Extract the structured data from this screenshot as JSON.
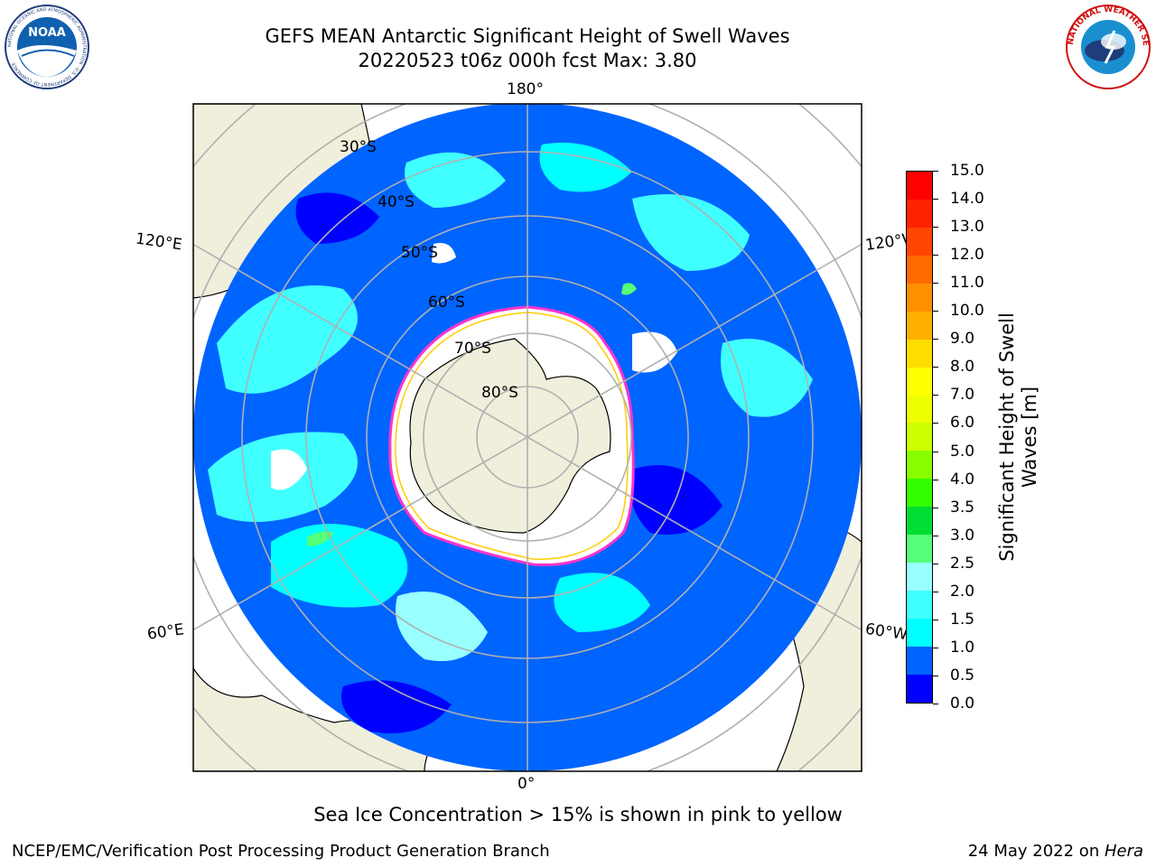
{
  "header": {
    "title_line1": "GEFS MEAN Antarctic Significant Height of Swell Waves",
    "title_line2": "20220523 t06z 000h fcst   Max: 3.80"
  },
  "logos": {
    "left": {
      "name": "noaa-logo",
      "text": "NOAA",
      "ring_text": "NATIONAL OCEANIC AND ATMOSPHERIC ADMINISTRATION · U.S. DEPARTMENT OF COMMERCE"
    },
    "right": {
      "name": "nws-logo",
      "ring_text": "NATIONAL WEATHER SERVICE"
    }
  },
  "map": {
    "projection": "south polar stereographic",
    "longitude_labels": {
      "top": "180°",
      "bottom": "0°",
      "left_upper": "120°E",
      "left_lower": "60°E",
      "right_upper": "120°W",
      "right_lower": "60°W"
    },
    "latitude_labels": [
      "30°S",
      "40°S",
      "50°S",
      "60°S",
      "70°S",
      "80°S"
    ],
    "colors": {
      "land": "#efefdc",
      "ice": "#ffffff",
      "sea_ice_edge": [
        "#ff33cc",
        "#ffcc00"
      ],
      "grid": "#b0b0b0",
      "coast": "#000000"
    }
  },
  "colorbar": {
    "label": "Significant Height of Swell Waves [m]",
    "label_line1": "Significant Height of Swell",
    "label_line2": "Waves [m]",
    "ticks": [
      "0.0",
      "0.5",
      "1.0",
      "1.5",
      "2.0",
      "2.5",
      "3.0",
      "3.5",
      "4.0",
      "5.0",
      "6.0",
      "7.0",
      "8.0",
      "9.0",
      "10.0",
      "11.0",
      "12.0",
      "13.0",
      "14.0",
      "15.0"
    ],
    "colors": [
      "#0000ff",
      "#0064ff",
      "#00ffff",
      "#40ffff",
      "#99ffff",
      "#55ff77",
      "#00dd33",
      "#33ff00",
      "#88ff00",
      "#ccff00",
      "#eeff00",
      "#ffff00",
      "#ffdd00",
      "#ffb000",
      "#ff9000",
      "#ff6a00",
      "#ff4500",
      "#ff2200",
      "#ff0000"
    ]
  },
  "footer": {
    "note": "Sea Ice Concentration > 15% is shown in pink to yellow",
    "credit": "NCEP/EMC/Verification Post Processing Product Generation Branch",
    "date_prefix": "24 May 2022 on ",
    "date_host": "Hera"
  }
}
